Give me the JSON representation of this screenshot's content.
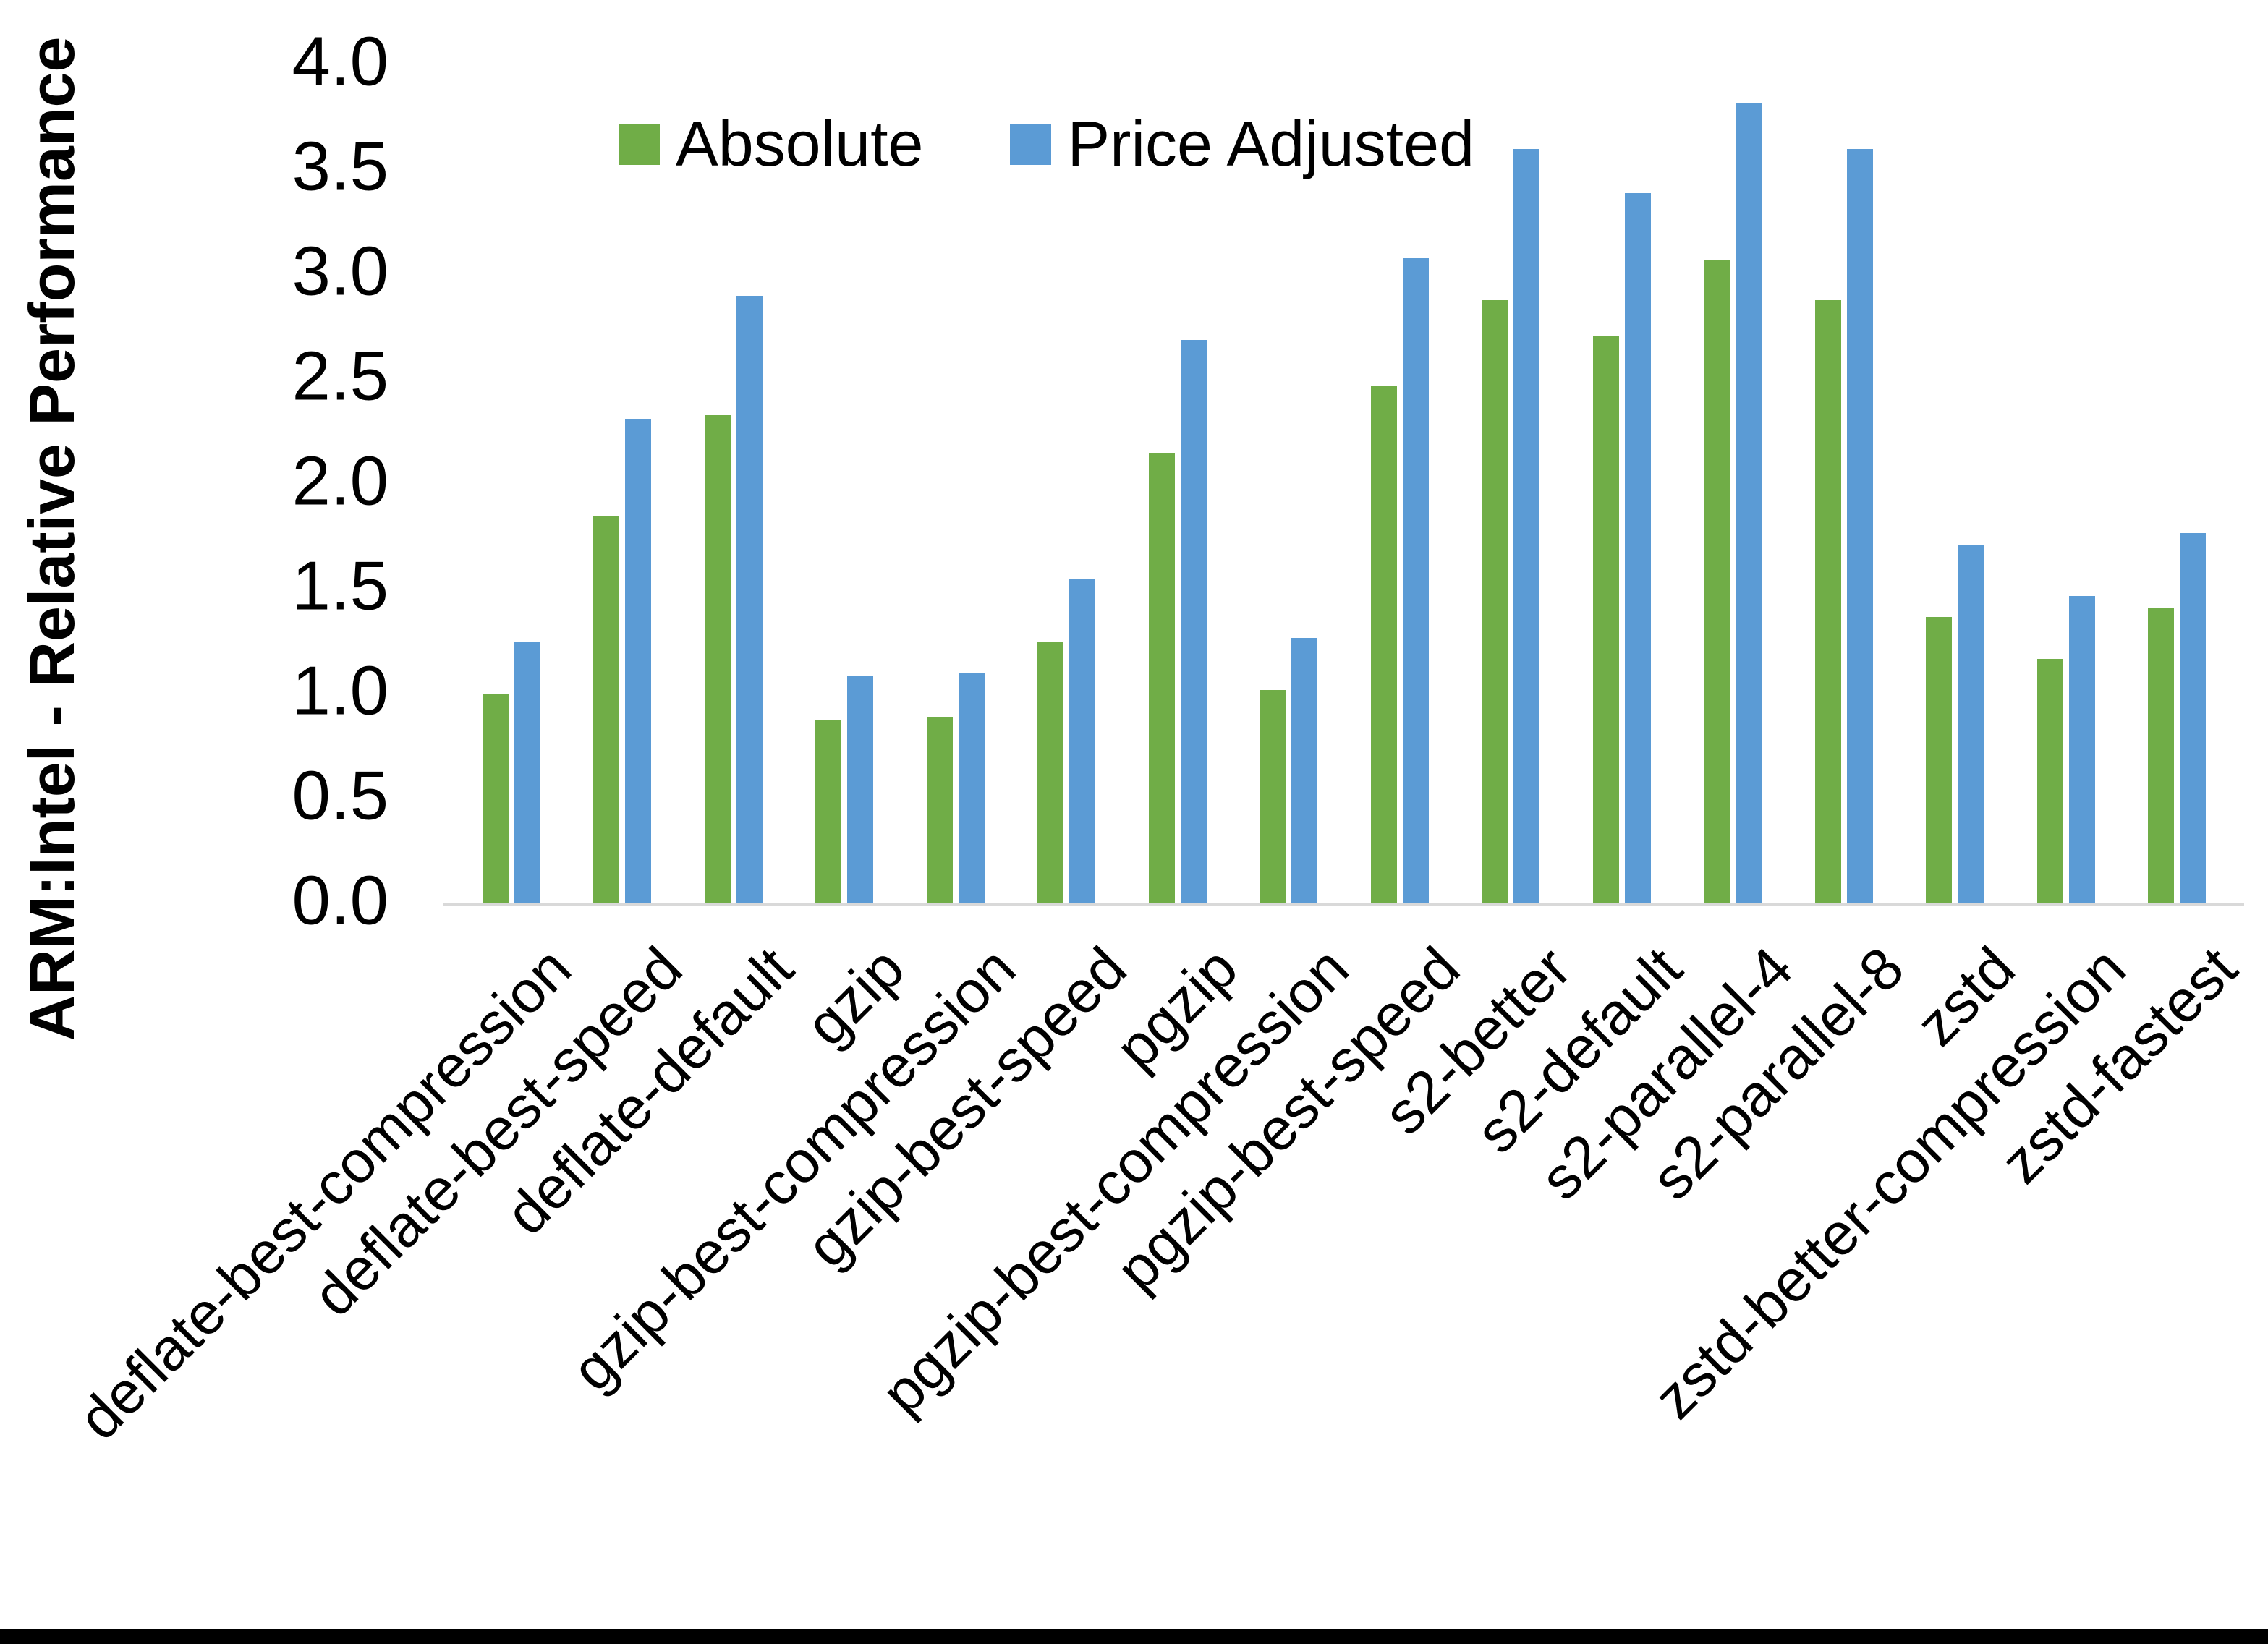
{
  "figure": {
    "ylabel": "ARM:Intel - Relative Performance"
  },
  "chart_data": {
    "type": "bar",
    "title": "",
    "xlabel": "",
    "ylabel": "ARM:Intel - Relative Performance",
    "ylim": [
      0.0,
      4.0
    ],
    "ytick_step": 0.5,
    "ytick_labels": [
      "0.0",
      "0.5",
      "1.0",
      "1.5",
      "2.0",
      "2.5",
      "3.0",
      "3.5",
      "4.0"
    ],
    "grid": false,
    "legend_position": "top-center",
    "axis_line_color": "#d9d9d9",
    "categories": [
      "deflate-best-compression",
      "deflate-best-speed",
      "deflate-default",
      "gzip",
      "gzip-best-compression",
      "gzip-best-speed",
      "pgzip",
      "pgzip-best-compression",
      "pgzip-best-speed",
      "s2-better",
      "s2-default",
      "s2-parallel-4",
      "s2-parallel-8",
      "zstd",
      "zstd-better-compression",
      "zstd-fastest"
    ],
    "series": [
      {
        "name": "Absolute",
        "color": "#70AD47",
        "values": [
          1.0,
          1.85,
          2.33,
          0.88,
          0.89,
          1.25,
          2.15,
          1.02,
          2.47,
          2.88,
          2.71,
          3.07,
          2.88,
          1.37,
          1.17,
          1.41
        ]
      },
      {
        "name": "Price Adjusted",
        "color": "#5B9BD5",
        "values": [
          1.25,
          2.31,
          2.9,
          1.09,
          1.1,
          1.55,
          2.69,
          1.27,
          3.08,
          3.6,
          3.39,
          3.82,
          3.6,
          1.71,
          1.47,
          1.77
        ]
      }
    ]
  }
}
